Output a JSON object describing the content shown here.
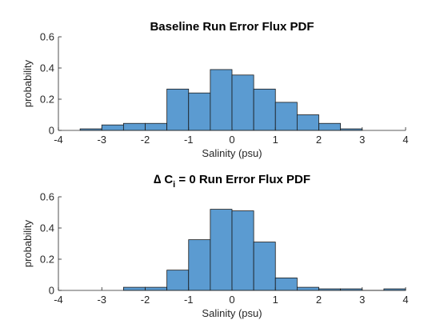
{
  "chart_data": [
    {
      "type": "bar",
      "title": "Baseline Run Error Flux PDF",
      "xlabel": "Salinity (psu)",
      "ylabel": "probability",
      "xlim": [
        -4,
        4
      ],
      "ylim": [
        0,
        0.6
      ],
      "xticks": [
        "-4",
        "-3",
        "-2",
        "-1",
        "0",
        "1",
        "2",
        "3",
        "4"
      ],
      "yticks": [
        "0",
        "0.2",
        "0.4",
        "0.6"
      ],
      "bin_edges": [
        -3.5,
        -3,
        -2.5,
        -2,
        -1.5,
        -1,
        -0.5,
        0,
        0.5,
        1,
        1.5,
        2,
        2.5,
        3
      ],
      "values": [
        0.01,
        0.035,
        0.045,
        0.045,
        0.265,
        0.24,
        0.39,
        0.355,
        0.265,
        0.18,
        0.1,
        0.045,
        0.01
      ],
      "bar_color": "#5b9bd1",
      "grid": false
    },
    {
      "type": "bar",
      "title": "∆ C",
      "title_subscript": "i",
      "title_suffix": " = 0 Run Error Flux PDF",
      "xlabel": "Salinity (psu)",
      "ylabel": "probability",
      "xlim": [
        -4,
        4
      ],
      "ylim": [
        0,
        0.6
      ],
      "xticks": [
        "-4",
        "-3",
        "-2",
        "-1",
        "0",
        "1",
        "2",
        "3",
        "4"
      ],
      "yticks": [
        "0",
        "0.2",
        "0.4",
        "0.6"
      ],
      "bin_edges": [
        -2.5,
        -2,
        -1.5,
        -1,
        -0.5,
        0,
        0.5,
        1,
        1.5,
        2,
        2.5,
        3,
        3.5,
        4
      ],
      "values": [
        0.02,
        0.02,
        0.13,
        0.325,
        0.52,
        0.51,
        0.31,
        0.08,
        0.02,
        0.01,
        0.01,
        0,
        0.01
      ],
      "bar_color": "#5b9bd1",
      "grid": false
    }
  ]
}
